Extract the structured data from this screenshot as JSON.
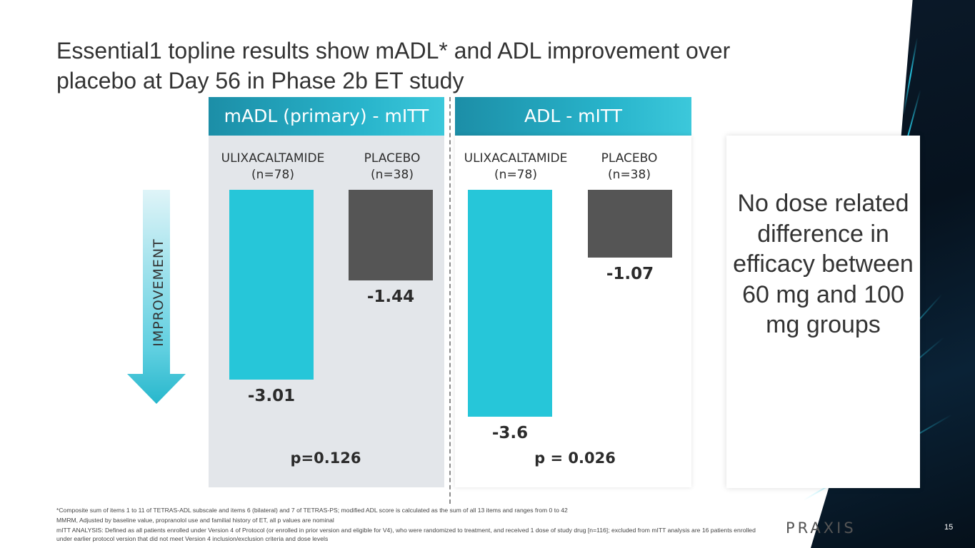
{
  "title": "Essential1 topline results show mADL* and ADL improvement over placebo at Day 56 in Phase 2b ET study",
  "improvement_label": "IMPROVEMENT",
  "note": {
    "text": "No dose related difference in efficacy between 60 mg and 100 mg groups"
  },
  "chart_data": [
    {
      "type": "bar",
      "title": "mADL (primary) - mITT",
      "categories": [
        "ULIXACALTAMIDE\n(n=78)",
        "PLACEBO\n(n=38)"
      ],
      "category_lines": [
        [
          "ULIXACALTAMIDE",
          "(n=78)"
        ],
        [
          "PLACEBO",
          "(n=38)"
        ]
      ],
      "values": [
        -3.01,
        -1.44
      ],
      "value_labels": [
        "-3.01",
        "-1.44"
      ],
      "colors": [
        "#26c6d9",
        "#555555"
      ],
      "p_value": "p=0.126",
      "ylim": [
        -3.6,
        0
      ]
    },
    {
      "type": "bar",
      "title": "ADL - mITT",
      "categories": [
        "ULIXACALTAMIDE\n(n=78)",
        "PLACEBO\n(n=38)"
      ],
      "category_lines": [
        [
          "ULIXACALTAMIDE",
          "(n=78)"
        ],
        [
          "PLACEBO",
          "(n=38)"
        ]
      ],
      "values": [
        -3.6,
        -1.07
      ],
      "value_labels": [
        "-3.6",
        "-1.07"
      ],
      "colors": [
        "#26c6d9",
        "#555555"
      ],
      "p_value": "p = 0.026",
      "ylim": [
        -3.6,
        0
      ]
    }
  ],
  "footnotes": [
    "*Composite sum of items 1 to 11 of TETRAS-ADL subscale and items 6 (bilateral) and 7 of TETRAS-PS; modified ADL score is calculated as the sum of all 13 items and ranges from 0 to 42",
    "MMRM, Adjusted by baseline value, propranolol use and familial history of ET, all p values are nominal",
    "mITT ANALYSIS: Defined as all patients enrolled under Version 4 of Protocol (or enrolled in prior version and eligible for V4), who were randomized to treatment, and received 1 dose of study drug [n=116]; excluded from mITT analysis are 16 patients enrolled under earlier protocol version that did not meet Version 4 inclusion/exclusion criteria and dose levels"
  ],
  "logo_text": "PRAXIS",
  "page_number": "15"
}
